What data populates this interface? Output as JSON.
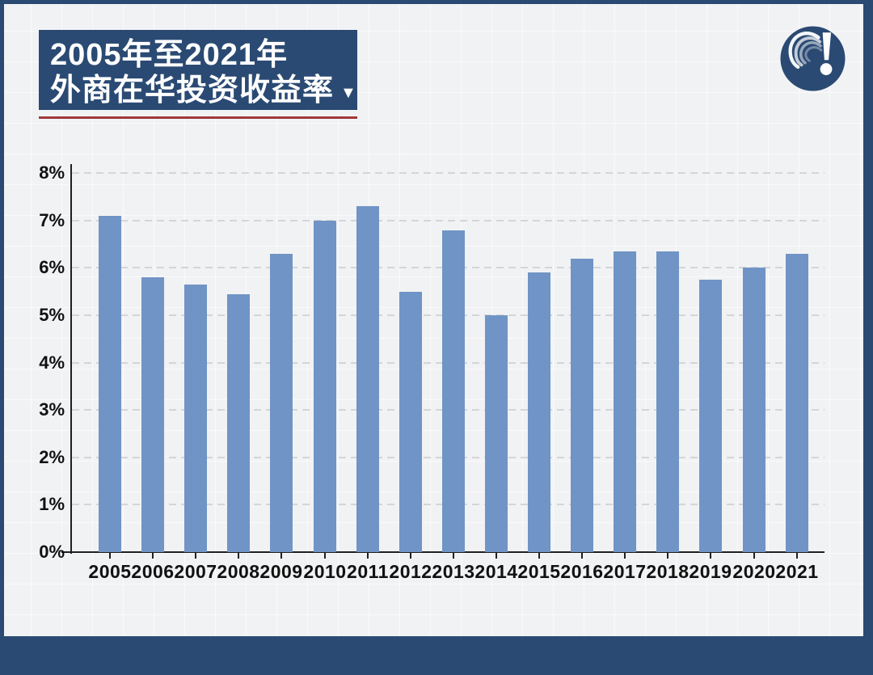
{
  "header": {
    "title_line1": "2005年至2021年",
    "title_line2": "外商在华投资收益率",
    "dropdown_icon": "▼"
  },
  "colors": {
    "frame_navy": "#2a4a73",
    "underline_red": "#9e393c",
    "bar_blue": "#7094c5",
    "background": "#f1f2f4",
    "axis": "#1f1f1f"
  },
  "chart_data": {
    "type": "bar",
    "title": "2005年至2021年外商在华投资收益率",
    "categories": [
      "2005",
      "2006",
      "2007",
      "2008",
      "2009",
      "2010",
      "2011",
      "2012",
      "2013",
      "2014",
      "2015",
      "2016",
      "2017",
      "2018",
      "2019",
      "2020",
      "2021"
    ],
    "values": [
      7.1,
      5.8,
      5.65,
      5.45,
      6.3,
      7.0,
      7.3,
      5.5,
      6.8,
      5.0,
      5.9,
      6.2,
      6.35,
      6.35,
      5.75,
      6.0,
      6.3
    ],
    "unit": "%",
    "xlabel": "",
    "ylabel": "",
    "ylim": [
      0,
      8
    ],
    "y_ticks": [
      "0%",
      "1%",
      "2%",
      "3%",
      "4%",
      "5%",
      "6%",
      "7%",
      "8%"
    ],
    "grid": "horizontal-dashed",
    "legend": "none",
    "bar_color": "#7094c5"
  }
}
